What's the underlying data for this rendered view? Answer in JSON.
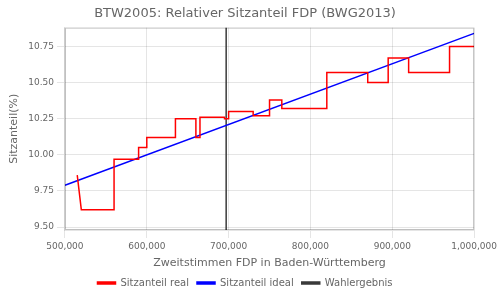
{
  "chart_data": {
    "type": "line",
    "title": "BTW2005: Relativer Sitzanteil FDP (BWG2013)",
    "x_label": "Zweitstimmen FDP in Baden-Württemberg",
    "y_label": "Sitzanteil(%)",
    "xlim": [
      500000,
      1000000
    ],
    "ylim": [
      9.48,
      10.88
    ],
    "xticks": [
      {
        "value": 500000,
        "label": "500,000"
      },
      {
        "value": 600000,
        "label": "600,000"
      },
      {
        "value": 700000,
        "label": "700,000"
      },
      {
        "value": 800000,
        "label": "800,000"
      },
      {
        "value": 900000,
        "label": "900,000"
      },
      {
        "value": 1000000,
        "label": "1,000,000"
      }
    ],
    "yticks": [
      {
        "value": 9.5,
        "label": "9.50"
      },
      9.75,
      {
        "value": 10,
        "label": "10.00"
      },
      10.25,
      {
        "value": 10.5,
        "label": "10.50"
      },
      10.75
    ],
    "grid": true,
    "legend": "bottom",
    "series": [
      {
        "name": "Sitzanteil real",
        "color": "red",
        "x": [
          515000,
          520000,
          560000,
          560000,
          590000,
          590000,
          600000,
          600000,
          635000,
          635000,
          660000,
          660000,
          665000,
          665000,
          695000,
          695000,
          700000,
          700000,
          730000,
          730000,
          750000,
          750000,
          765000,
          765000,
          820000,
          820000,
          870000,
          870000,
          895000,
          895000,
          920000,
          920000,
          970000,
          970000,
          1000000
        ],
        "values": [
          9.86,
          9.62,
          9.62,
          9.97,
          9.97,
          10.05,
          10.05,
          10.12,
          10.12,
          10.25,
          10.25,
          10.12,
          10.12,
          10.26,
          10.26,
          10.25,
          10.25,
          10.3,
          10.3,
          10.27,
          10.27,
          10.38,
          10.38,
          10.32,
          10.32,
          10.57,
          10.57,
          10.5,
          10.5,
          10.67,
          10.67,
          10.57,
          10.57,
          10.75,
          10.75
        ]
      },
      {
        "name": "Sitzanteil ideal",
        "color": "blue",
        "x": [
          500000,
          1000000
        ],
        "values": [
          9.79,
          10.84
        ]
      },
      {
        "name": "Wahlergebnis",
        "color": "#3a3a3a",
        "type": "vline",
        "x": 697000
      }
    ]
  }
}
